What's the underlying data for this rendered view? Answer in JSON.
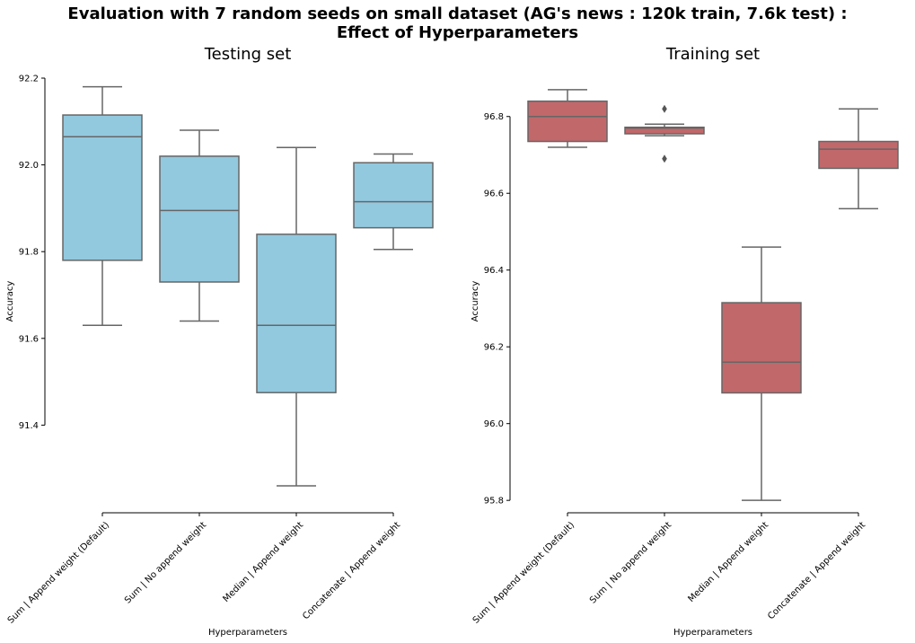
{
  "figure": {
    "title_line1": "Evaluation with 7 random seeds on small dataset (AG's news : 120k train, 7.6k test) :",
    "title_line2": "Effect of Hyperparameters"
  },
  "chart_data": [
    {
      "type": "box",
      "title": "Testing set",
      "xlabel": "Hyperparameters",
      "ylabel": "Accuracy",
      "color": "#92C9DF",
      "edge_color": "#666666",
      "ylim": [
        91.2,
        92.2
      ],
      "yticks": [
        91.4,
        91.6,
        91.8,
        92.0,
        92.2
      ],
      "categories": [
        "Sum | Append weight (Default)",
        "Sum | No append weight",
        "Median | Append weight",
        "Concatenate | Append weight"
      ],
      "boxes": [
        {
          "whisker_low": 91.63,
          "q1": 91.78,
          "median": 92.065,
          "q3": 92.115,
          "whisker_high": 92.18,
          "outliers": []
        },
        {
          "whisker_low": 91.64,
          "q1": 91.73,
          "median": 91.895,
          "q3": 92.02,
          "whisker_high": 92.08,
          "outliers": []
        },
        {
          "whisker_low": 91.26,
          "q1": 91.475,
          "median": 91.63,
          "q3": 91.84,
          "whisker_high": 92.04,
          "outliers": []
        },
        {
          "whisker_low": 91.805,
          "q1": 91.855,
          "median": 91.915,
          "q3": 92.005,
          "whisker_high": 92.025,
          "outliers": []
        }
      ]
    },
    {
      "type": "box",
      "title": "Training set",
      "xlabel": "Hyperparameters",
      "ylabel": "Accuracy",
      "color": "#C1686B",
      "edge_color": "#666666",
      "ylim": [
        95.77,
        96.9
      ],
      "yticks": [
        95.8,
        96.0,
        96.2,
        96.4,
        96.6,
        96.8
      ],
      "categories": [
        "Sum | Append weight (Default)",
        "Sum | No append weight",
        "Median | Append weight",
        "Concatenate | Append weight"
      ],
      "boxes": [
        {
          "whisker_low": 96.72,
          "q1": 96.735,
          "median": 96.8,
          "q3": 96.84,
          "whisker_high": 96.87,
          "outliers": []
        },
        {
          "whisker_low": 96.75,
          "q1": 96.755,
          "median": 96.77,
          "q3": 96.772,
          "whisker_high": 96.78,
          "outliers": [
            96.82,
            96.69
          ]
        },
        {
          "whisker_low": 95.8,
          "q1": 96.08,
          "median": 96.16,
          "q3": 96.315,
          "whisker_high": 96.46,
          "outliers": []
        },
        {
          "whisker_low": 96.56,
          "q1": 96.665,
          "median": 96.715,
          "q3": 96.735,
          "whisker_high": 96.82,
          "outliers": []
        }
      ]
    }
  ]
}
